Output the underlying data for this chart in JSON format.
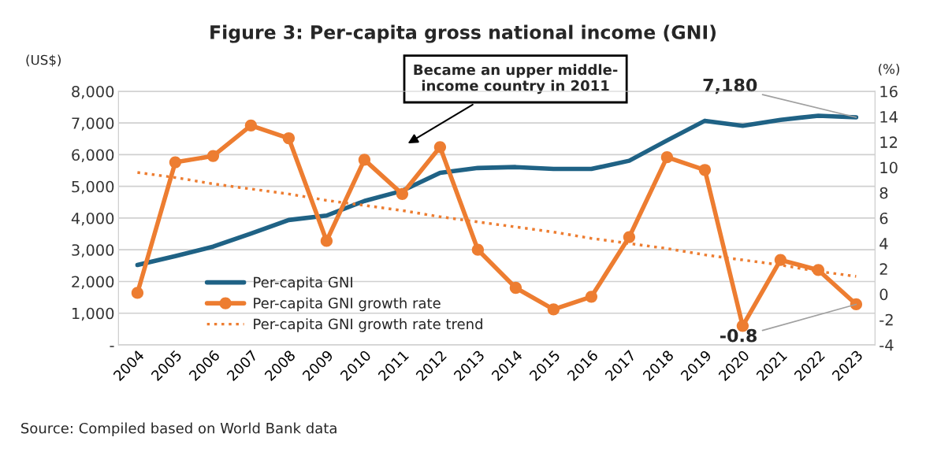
{
  "chart_data": {
    "type": "line",
    "title": "Figure 3: Per-capita gross national income (GNI)",
    "ylabel": "(US$)",
    "y2label": "(%)",
    "categories": [
      "2004",
      "2005",
      "2006",
      "2007",
      "2008",
      "2009",
      "2010",
      "2011",
      "2012",
      "2013",
      "2014",
      "2015",
      "2016",
      "2017",
      "2018",
      "2019",
      "2020",
      "2021",
      "2022",
      "2023"
    ],
    "series": [
      {
        "name": "Per-capita GNI",
        "color": "#1f6285",
        "marker": "none",
        "line_style": "solid",
        "values": [
          2520,
          2800,
          3100,
          3510,
          3940,
          4080,
          4540,
          4860,
          5430,
          5580,
          5610,
          5550,
          5550,
          5810,
          6450,
          7070,
          6910,
          7100,
          7230,
          7180
        ],
        "value_labels": [
          null,
          null,
          null,
          null,
          null,
          null,
          null,
          null,
          null,
          null,
          null,
          null,
          null,
          null,
          null,
          null,
          null,
          null,
          null,
          "7,180"
        ]
      },
      {
        "name": "Per-capita GNI growth rate",
        "color": "#ed7d31",
        "axis": "y2",
        "marker": "circle",
        "line_style": "solid",
        "values": [
          0.1,
          10.4,
          10.9,
          13.3,
          12.3,
          4.2,
          10.6,
          7.9,
          11.6,
          3.5,
          0.5,
          -1.2,
          -0.2,
          4.5,
          10.8,
          9.8,
          -2.5,
          2.7,
          1.9,
          -0.8
        ],
        "value_labels": [
          null,
          null,
          null,
          null,
          null,
          null,
          null,
          null,
          null,
          null,
          null,
          null,
          null,
          null,
          null,
          null,
          null,
          null,
          null,
          "-0.8"
        ]
      },
      {
        "name": "Per-capita GNI growth rate trend",
        "color": "#ed7d31",
        "axis": "y2",
        "marker": "none",
        "line_style": "dotted",
        "values": [
          9.6,
          9.2,
          8.7,
          8.3,
          7.9,
          7.4,
          7.0,
          6.6,
          6.1,
          5.7,
          5.3,
          4.9,
          4.4,
          4.0,
          3.6,
          3.1,
          2.7,
          2.3,
          1.8,
          1.4
        ]
      }
    ],
    "ylim": [
      0,
      8000
    ],
    "yticks": [
      {
        "value": 0,
        "label": "-"
      },
      {
        "value": 1000,
        "label": "1,000"
      },
      {
        "value": 2000,
        "label": "2,000"
      },
      {
        "value": 3000,
        "label": "3,000"
      },
      {
        "value": 4000,
        "label": "4,000"
      },
      {
        "value": 5000,
        "label": "5,000"
      },
      {
        "value": 6000,
        "label": "6,000"
      },
      {
        "value": 7000,
        "label": "7,000"
      },
      {
        "value": 8000,
        "label": "8,000"
      }
    ],
    "y2lim": [
      -4,
      16
    ],
    "y2ticks": [
      -4,
      -2,
      0,
      2,
      4,
      6,
      8,
      10,
      12,
      14,
      16
    ],
    "grid": "y",
    "legend": "bottom left",
    "annotations": [
      "Became an upper middle-\nincome country in 2011",
      "Source: Compiled based on World Bank data"
    ]
  }
}
